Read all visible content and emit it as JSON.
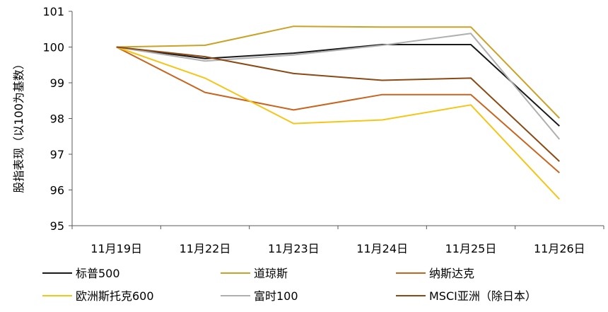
{
  "chart_data": {
    "type": "line",
    "ylabel": "股指表现（以100为基数）",
    "categories": [
      "11月19日",
      "11月22日",
      "11月23日",
      "11月24日",
      "11月25日",
      "11月26日"
    ],
    "ylim": [
      95,
      101
    ],
    "yticks": [
      95,
      96,
      97,
      98,
      99,
      100,
      101
    ],
    "grid": false,
    "legend_position": "bottom",
    "series": [
      {
        "name": "标普500",
        "color": "#1a1a1a",
        "values": [
          100,
          99.68,
          99.83,
          100.07,
          100.07,
          97.79
        ]
      },
      {
        "name": "道琼斯",
        "color": "#c9a227",
        "values": [
          100,
          100.05,
          100.58,
          100.56,
          100.56,
          98.01
        ]
      },
      {
        "name": "纳斯达克",
        "color": "#c9641f",
        "values": [
          100,
          98.73,
          98.24,
          98.67,
          98.67,
          96.48
        ]
      },
      {
        "name": "欧洲斯托克600",
        "color": "#f5c518",
        "values": [
          100,
          99.13,
          97.86,
          97.96,
          98.38,
          95.74
        ]
      },
      {
        "name": "富时100",
        "color": "#b0b0b0",
        "values": [
          100,
          99.61,
          99.78,
          100.05,
          100.38,
          97.42
        ]
      },
      {
        "name": "MSCI亚洲（除日本）",
        "color": "#8b4a14",
        "values": [
          100,
          99.73,
          99.26,
          99.07,
          99.13,
          96.8
        ]
      }
    ]
  }
}
